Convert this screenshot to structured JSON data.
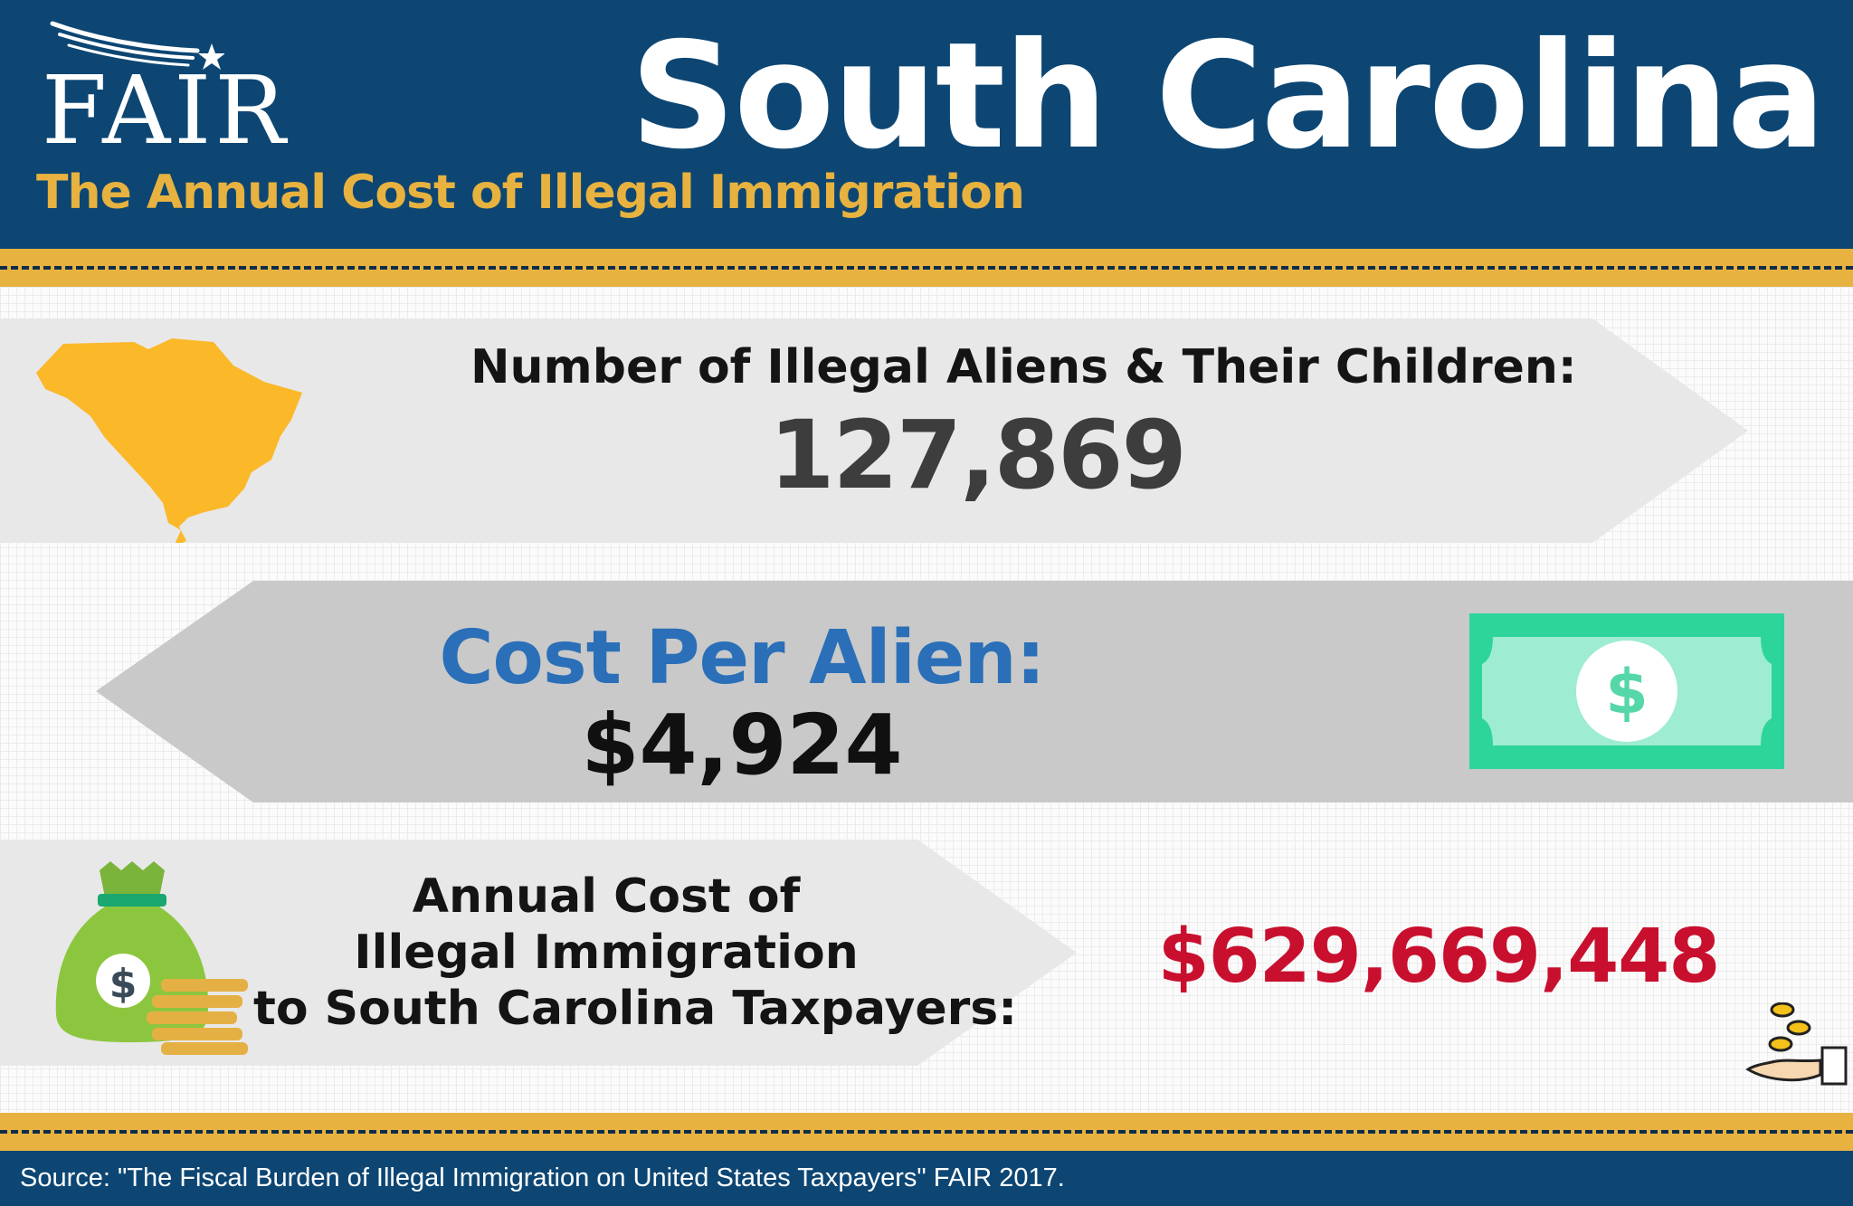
{
  "header": {
    "logo_text": "FAIR",
    "state_name": "South Carolina",
    "subtitle": "The Annual Cost of Illegal Immigration"
  },
  "stats": {
    "population": {
      "label": "Number of Illegal Aliens & Their Children:",
      "value": "127,869"
    },
    "cost_per_alien": {
      "label": "Cost Per Alien:",
      "value": "$4,924"
    },
    "annual_cost": {
      "label_lines": [
        "Annual Cost of",
        "Illegal Immigration",
        "to South Carolina Taxpayers:"
      ],
      "value": "$629,669,448"
    }
  },
  "footer": {
    "source": "Source: \"The Fiscal Burden of Illegal Immigration on United States Taxpayers\" FAIR 2017."
  },
  "icons": [
    "state-map-icon",
    "dollar-bill-icon",
    "money-bag-icon",
    "coin-stack-icon",
    "hand-coins-icon",
    "star-swoosh-icon"
  ],
  "colors": {
    "navy": "#0d4673",
    "gold": "#e7b23f",
    "map_yellow": "#fbb829",
    "label_blue": "#2a6fb8",
    "value_red": "#c8102e",
    "bill_green": "#2dd59b",
    "bag_green": "#8cc63f"
  }
}
